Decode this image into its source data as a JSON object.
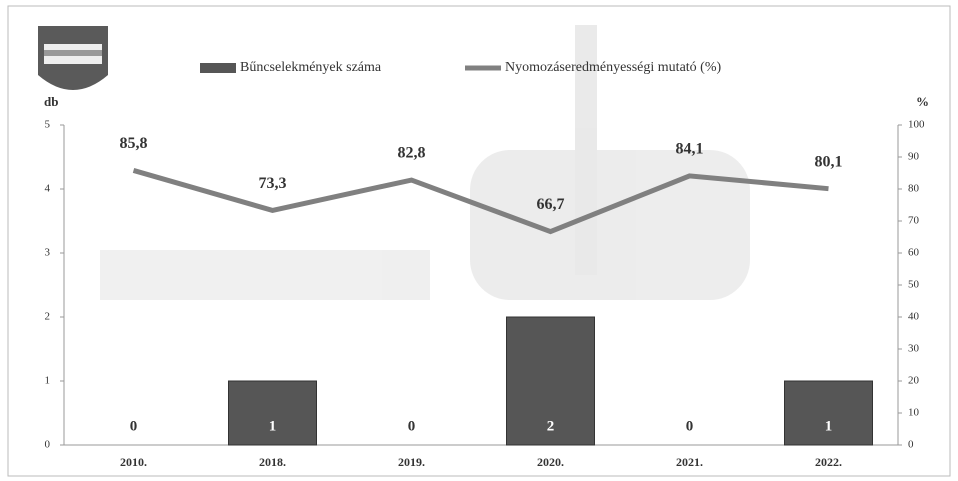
{
  "chart_data": {
    "type": "bar",
    "categories": [
      "2010.",
      "2018.",
      "2019.",
      "2020.",
      "2021.",
      "2022."
    ],
    "series": [
      {
        "name": "Bűncselekmények száma",
        "color": "#565656",
        "values": [
          0,
          1,
          0,
          2,
          0,
          1
        ]
      },
      {
        "name": "Nyomozáseredményességi mutató (%)",
        "type": "line",
        "axis": "y2",
        "color": "#808080",
        "values": [
          85.8,
          73.3,
          82.8,
          66.7,
          84.1,
          80.1
        ],
        "value_labels": [
          "85,8",
          "73,3",
          "82,8",
          "66,7",
          "84,1",
          "80,1"
        ]
      }
    ],
    "y_label": "db",
    "y2_label": "%",
    "ylim": [
      0,
      5
    ],
    "yticks": [
      0,
      1,
      2,
      3,
      4,
      5
    ],
    "y2lim": [
      0,
      100
    ],
    "y2ticks": [
      0,
      10,
      20,
      30,
      40,
      50,
      60,
      70,
      80,
      90,
      100
    ]
  }
}
